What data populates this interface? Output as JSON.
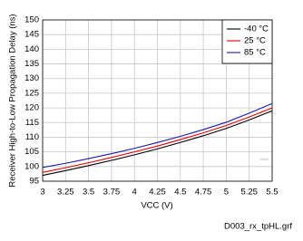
{
  "chart_data": {
    "type": "line",
    "x_label": "VCC (V)",
    "y_label": "Receiver High-to-Low Propagation Delay (ns)",
    "annotations": [
      "D003"
    ],
    "footer": "D003_rx_tpHL.grf",
    "x": [
      3,
      3.25,
      3.5,
      3.75,
      4,
      4.25,
      4.5,
      4.75,
      5,
      5.25,
      5.5
    ],
    "series": [
      {
        "name": "-40 °C",
        "color": "#000000",
        "values": [
          97,
          98.6,
          100.3,
          102.1,
          104.0,
          106.0,
          108.2,
          110.5,
          113.0,
          115.9,
          119.0
        ]
      },
      {
        "name": "25 °C",
        "color": "#e00000",
        "values": [
          98,
          99.6,
          101.3,
          103.1,
          105.0,
          107.0,
          109.2,
          111.5,
          114.0,
          116.9,
          120.0
        ]
      },
      {
        "name": "85 °C",
        "color": "#1a1aa6",
        "values": [
          99.7,
          101.1,
          102.7,
          104.4,
          106.2,
          108.2,
          110.3,
          112.6,
          115.1,
          118.2,
          121.5
        ]
      }
    ],
    "xlim": [
      3,
      5.5
    ],
    "xticks": [
      3,
      3.25,
      3.5,
      3.75,
      4,
      4.25,
      4.5,
      4.75,
      5,
      5.25,
      5.5
    ],
    "ylim": [
      95,
      150
    ],
    "yticks": [
      95,
      100,
      105,
      110,
      115,
      120,
      125,
      130,
      135,
      140,
      145,
      150
    ],
    "grid": true,
    "legend_position": "top-right"
  }
}
